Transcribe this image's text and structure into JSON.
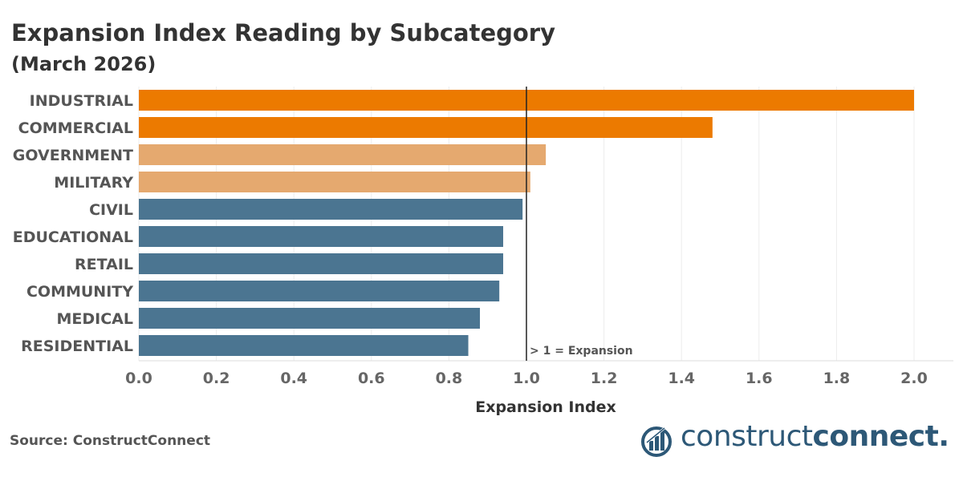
{
  "title": "Expansion Index Reading by Subcategory",
  "subtitle": "(March 2026)",
  "source": "Source: ConstructConnect",
  "logo": {
    "part1": "construct",
    "part2": "connect",
    "mark": "."
  },
  "colors": {
    "strong_expansion": "#ec7a00",
    "mild_expansion": "#e5a96f",
    "contraction": "#4b7591",
    "reference_line": "#222222",
    "logo": "#2d5877"
  },
  "chart_data": {
    "type": "bar",
    "orientation": "horizontal",
    "categories": [
      "INDUSTRIAL",
      "COMMERCIAL",
      "GOVERNMENT",
      "MILITARY",
      "CIVIL",
      "EDUCATIONAL",
      "RETAIL",
      "COMMUNITY",
      "MEDICAL",
      "RESIDENTIAL"
    ],
    "values": [
      2.0,
      1.48,
      1.05,
      1.01,
      0.99,
      0.94,
      0.94,
      0.93,
      0.88,
      0.85
    ],
    "color_groups": [
      "strong_expansion",
      "strong_expansion",
      "mild_expansion",
      "mild_expansion",
      "contraction",
      "contraction",
      "contraction",
      "contraction",
      "contraction",
      "contraction"
    ],
    "xlabel": "Expansion Index",
    "ylabel": "",
    "xlim": [
      0,
      2.1
    ],
    "xticks": [
      "0.0",
      "0.2",
      "0.4",
      "0.6",
      "0.8",
      "1.0",
      "1.2",
      "1.4",
      "1.6",
      "1.8",
      "2.0"
    ],
    "grid": true,
    "reference_line": {
      "value": 1.0,
      "label": "> 1 = Expansion"
    }
  }
}
